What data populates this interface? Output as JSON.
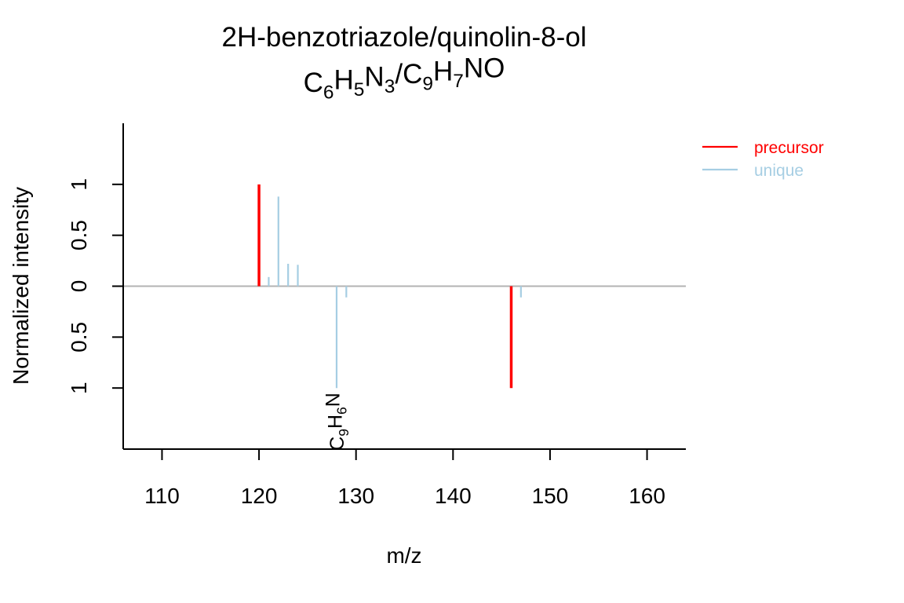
{
  "chart_data": {
    "type": "bar",
    "title": {
      "line1": "2H-benzotriazole/quinolin-8-ol",
      "line2": [
        {
          "t": "C",
          "sub": false
        },
        {
          "t": "6",
          "sub": true
        },
        {
          "t": "H",
          "sub": false
        },
        {
          "t": "5",
          "sub": true
        },
        {
          "t": "N",
          "sub": false
        },
        {
          "t": "3",
          "sub": true
        },
        {
          "t": "/C",
          "sub": false
        },
        {
          "t": "9",
          "sub": true
        },
        {
          "t": "H",
          "sub": false
        },
        {
          "t": "7",
          "sub": true
        },
        {
          "t": "NO",
          "sub": false
        }
      ]
    },
    "xlabel": "m/z",
    "ylabel": "Normalized intensity",
    "xlim": [
      106,
      164
    ],
    "ylim": [
      -1.6,
      1.6
    ],
    "x_ticks": [
      110,
      120,
      130,
      140,
      150,
      160
    ],
    "y_ticks": [
      {
        "value": 1,
        "label": "1"
      },
      {
        "value": 0.5,
        "label": "0.5"
      },
      {
        "value": 0,
        "label": "0"
      },
      {
        "value": -0.5,
        "label": "0.5"
      },
      {
        "value": -1,
        "label": "1"
      }
    ],
    "legend": {
      "position": "top-right",
      "entries": [
        {
          "label": "precursor",
          "color": "#ff0000"
        },
        {
          "label": "unique",
          "color": "#a6cee3"
        }
      ]
    },
    "series": [
      {
        "name": "precursor",
        "color": "#ff0000",
        "points": [
          {
            "mz": 120.0,
            "intensity": 1.0
          },
          {
            "mz": 146.0,
            "intensity": -1.0
          }
        ]
      },
      {
        "name": "unique",
        "color": "#a6cee3",
        "points": [
          {
            "mz": 121.0,
            "intensity": 0.09
          },
          {
            "mz": 122.0,
            "intensity": 0.88
          },
          {
            "mz": 123.0,
            "intensity": 0.22
          },
          {
            "mz": 124.0,
            "intensity": 0.21
          },
          {
            "mz": 128.0,
            "intensity": -1.0
          },
          {
            "mz": 129.0,
            "intensity": -0.11
          },
          {
            "mz": 147.0,
            "intensity": -0.11
          }
        ]
      }
    ],
    "annotations": [
      {
        "mz": 128.0,
        "intensity": -1.0,
        "label": [
          {
            "t": "C",
            "sub": false
          },
          {
            "t": "9",
            "sub": true
          },
          {
            "t": "H",
            "sub": false
          },
          {
            "t": "6",
            "sub": true
          },
          {
            "t": "N",
            "sub": false
          }
        ]
      }
    ],
    "zero_line_color": "#b3b3b3"
  }
}
